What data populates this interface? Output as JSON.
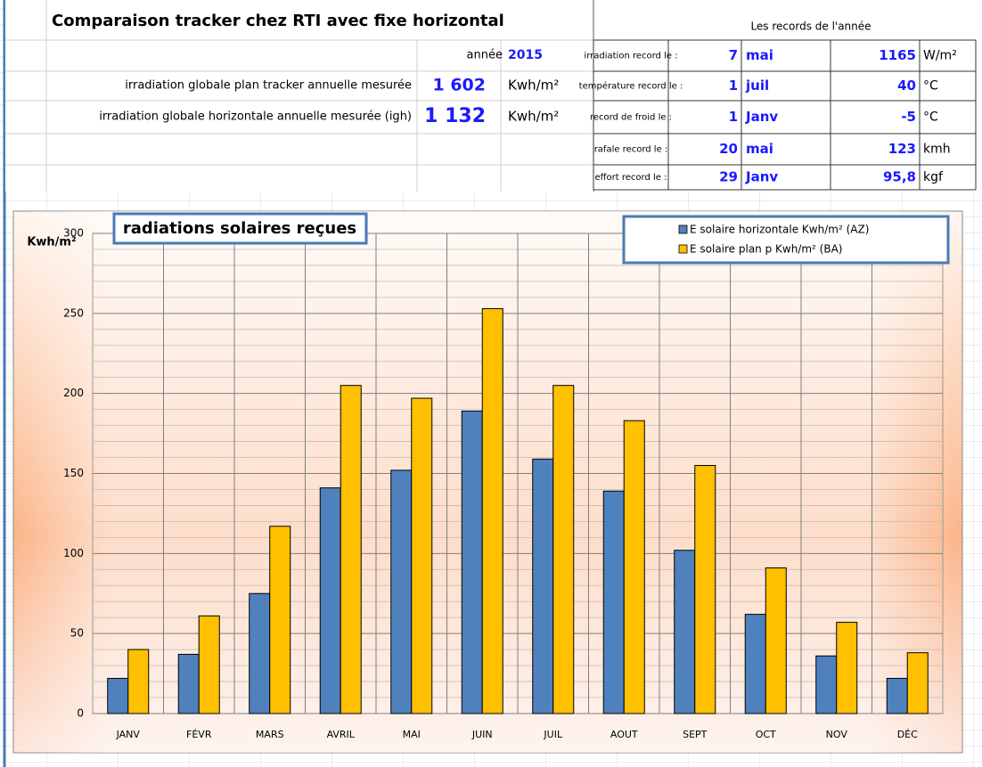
{
  "header": {
    "title": "Comparaison tracker chez RTI avec fixe horizontal",
    "year_label": "année",
    "year": "2015",
    "rows": [
      {
        "label": "irradiation globale plan tracker annuelle  mesurée",
        "value": "1 602",
        "unit": "Kwh/m²"
      },
      {
        "label": "irradiation globale horizontale annuelle  mesurée (igh)",
        "value": "1 132",
        "unit": "Kwh/m²"
      }
    ]
  },
  "records": {
    "title": "Les records de l'année",
    "rows": [
      [
        "irradiation record le :",
        "7",
        "mai",
        "1165",
        "W/m²"
      ],
      [
        "température record le :",
        "1",
        "juil",
        "40",
        "°C"
      ],
      [
        "record de froid le :",
        "1",
        "Janv",
        "-5",
        "°C"
      ],
      [
        "rafale record le :",
        "20",
        "mai",
        "123",
        "kmh"
      ],
      [
        "effort record le :",
        "29",
        "Janv",
        "95,8",
        "kgf"
      ]
    ]
  },
  "chart_data": {
    "type": "bar",
    "title": "radiations  solaires reçues",
    "y_label": "Kwh/m²",
    "categories": [
      "JANV",
      "FÉVR",
      "MARS",
      "AVRIL",
      "MAI",
      "JUIN",
      "JUIL",
      "AOUT",
      "SEPT",
      "OCT",
      "NOV",
      "DÉC"
    ],
    "series": [
      {
        "name": "E solaire horizontale  Kwh/m² (AZ)",
        "color": "#4f81bd",
        "values": [
          22,
          37,
          75,
          141,
          152,
          189,
          159,
          139,
          102,
          62,
          36,
          22
        ]
      },
      {
        "name": "E solaire plan p  Kwh/m²  (BA)",
        "color": "#ffc000",
        "values": [
          40,
          61,
          117,
          205,
          197,
          253,
          205,
          183,
          155,
          91,
          57,
          38
        ]
      }
    ],
    "ylim": [
      0,
      300
    ],
    "yticks": [
      0,
      50,
      100,
      150,
      200,
      250,
      300
    ],
    "yminor_ticks": [
      10,
      20,
      30,
      40,
      60,
      70,
      80,
      90,
      110,
      120,
      130,
      140,
      160,
      170,
      180,
      190,
      210,
      220,
      230,
      240,
      260,
      270,
      280,
      290
    ],
    "grid": true,
    "legend": "top-right"
  }
}
